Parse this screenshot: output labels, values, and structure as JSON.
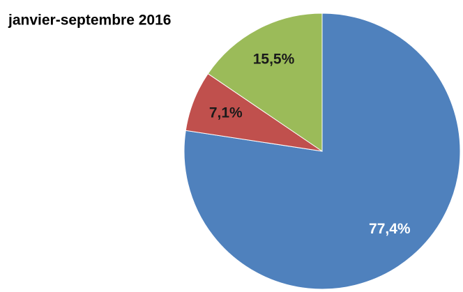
{
  "chart_data": {
    "type": "pie",
    "title": "janvier-septembre 2016",
    "values": [
      77.4,
      7.1,
      15.5
    ],
    "value_labels": [
      "77,4%",
      "7,1%",
      "15,5%"
    ],
    "colors": [
      "#4f81bd",
      "#c0504d",
      "#9bbb59"
    ],
    "label_colors": [
      "#ffffff",
      "#1a1a1a",
      "#1a1a1a"
    ]
  }
}
